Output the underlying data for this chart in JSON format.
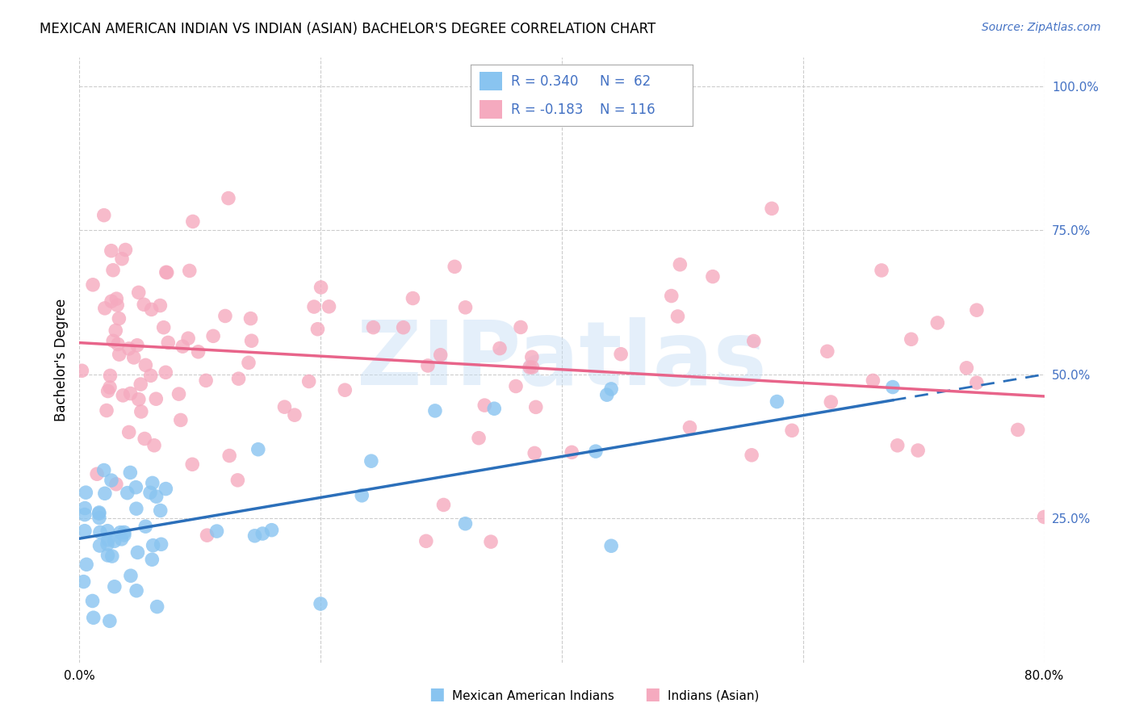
{
  "title": "MEXICAN AMERICAN INDIAN VS INDIAN (ASIAN) BACHELOR'S DEGREE CORRELATION CHART",
  "source": "Source: ZipAtlas.com",
  "ylabel": "Bachelor's Degree",
  "x_min": 0.0,
  "x_max": 0.8,
  "y_min": 0.0,
  "y_max": 1.05,
  "x_ticks": [
    0.0,
    0.2,
    0.4,
    0.6,
    0.8
  ],
  "x_tick_labels": [
    "0.0%",
    "",
    "",
    "",
    "80.0%"
  ],
  "y_ticks": [
    0.25,
    0.5,
    0.75,
    1.0
  ],
  "y_tick_labels": [
    "25.0%",
    "50.0%",
    "75.0%",
    "100.0%"
  ],
  "series1_color": "#89C4F0",
  "series2_color": "#F5AABF",
  "line1_color": "#2B6FBA",
  "line2_color": "#E8648A",
  "background_color": "#ffffff",
  "grid_color": "#cccccc",
  "R1": 0.34,
  "N1": 62,
  "R2": -0.183,
  "N2": 116,
  "watermark": "ZIPatlas",
  "legend_text_color": "#4472C4",
  "title_fontsize": 12,
  "source_fontsize": 10,
  "axis_label_fontsize": 12,
  "tick_fontsize": 11,
  "legend_fontsize": 12,
  "blue_line_y0": 0.215,
  "blue_line_y1": 0.5,
  "pink_line_y0": 0.555,
  "pink_line_y1": 0.462
}
